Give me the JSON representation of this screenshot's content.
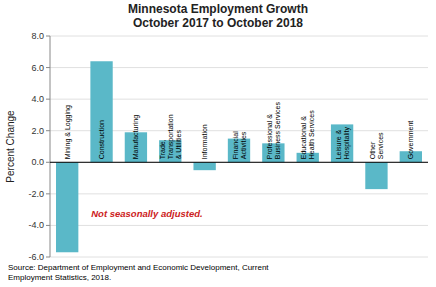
{
  "chart_data": {
    "type": "bar",
    "title": "Minnesota Employment Growth\nOctober 2017 to October 2018",
    "ylabel": "Percent Change",
    "categories": [
      "Mining & Logging",
      "Construction",
      "Manufacturing",
      "Trade,\nTransportation\n& Utilities",
      "Information",
      "Financial\nActivities",
      "Professional &\nBusiness Services",
      "Educational &\nHealth Services",
      "Leisure &\nHospitality",
      "Other\nServices",
      "Government"
    ],
    "values": [
      -5.7,
      6.4,
      1.9,
      1.4,
      -0.5,
      1.5,
      1.2,
      0.6,
      2.4,
      -1.7,
      0.7
    ],
    "color": "#5ab8c8",
    "ylim": [
      -6.0,
      8.0
    ],
    "yticks": [
      {
        "value": -6.0,
        "label": "-6.0"
      },
      {
        "value": -4.0,
        "label": "-4.0"
      },
      {
        "value": -2.0,
        "label": "-2.0"
      },
      {
        "value": 0.0,
        "label": "0.0"
      },
      {
        "value": 2.0,
        "label": "2.0"
      },
      {
        "value": 4.0,
        "label": "4.0"
      },
      {
        "value": 6.0,
        "label": "6.0"
      },
      {
        "value": 8.0,
        "label": "8.0"
      }
    ],
    "grid": true,
    "annotations": [
      {
        "text": "Not seasonally adjusted.",
        "color": "#cc2222"
      }
    ],
    "source": "Source: Department of Employment and Economic Development, Current\nEmployment Statistics, 2018."
  }
}
